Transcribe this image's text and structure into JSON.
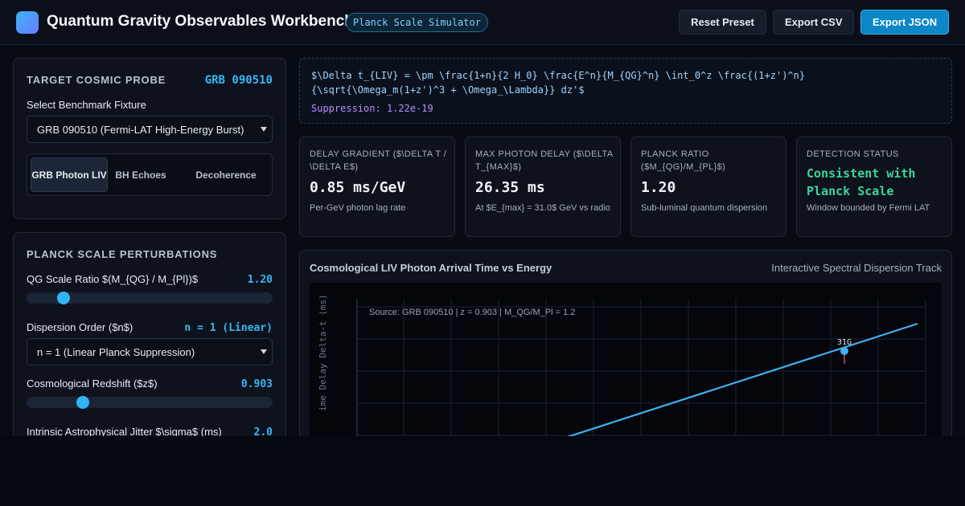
{
  "header": {
    "title": "Quantum Gravity Observables Workbench",
    "badge": "Planck Scale Simulator",
    "buttons": {
      "reset": "Reset Preset",
      "export_csv": "Export CSV",
      "export_json": "Export JSON"
    }
  },
  "probe_panel": {
    "title": "TARGET COSMIC PROBE",
    "probe_id": "GRB 090510",
    "fixture_label": "Select Benchmark Fixture",
    "fixture_value": "GRB 090510 (Fermi-LAT High-Energy Burst)",
    "tabs": [
      {
        "label": "GRB Photon LIV",
        "active": true
      },
      {
        "label": "BH Echoes",
        "active": false
      },
      {
        "label": "Decoherence",
        "active": false
      }
    ]
  },
  "perturbations": {
    "title": "PLANCK SCALE PERTURBATIONS",
    "qg_ratio": {
      "label": "QG Scale Ratio $(M_{QG} / M_{Pl})$",
      "value": "1.20",
      "fraction": 0.15
    },
    "dispersion": {
      "label": "Dispersion Order ($n$)",
      "value": "n = 1 (Linear)",
      "select_value": "n = 1 (Linear Planck Suppression)"
    },
    "redshift": {
      "label": "Cosmological Redshift ($z$)",
      "value": "0.903",
      "fraction": 0.23
    },
    "jitter": {
      "label": "Intrinsic Astrophysical Jitter $\\sigma$ (ms)",
      "value": "2.0"
    }
  },
  "formula": {
    "text": "$\\Delta t_{LIV} = \\pm \\frac{1+n}{2 H_0} \\frac{E^n}{M_{QG}^n} \\int_0^z \\frac{(1+z')^n}{\\sqrt{\\Omega_m(1+z')^3 + \\Omega_\\Lambda}} dz'$",
    "suppression_label": "Suppression:",
    "suppression_value": "1.22e-19"
  },
  "metrics": [
    {
      "label": "DELAY GRADIENT ($\\DELTA T / \\DELTA E$)",
      "value": "0.85 ms/GeV",
      "sub": "Per-GeV photon lag rate"
    },
    {
      "label": "MAX PHOTON DELAY ($\\DELTA T_{MAX}$)",
      "value": "26.35 ms",
      "sub": "At $E_{max} = 31.0$ GeV vs radio"
    },
    {
      "label": "PLANCK RATIO ($M_{QG}/M_{PL}$)",
      "value": "1.20",
      "sub": "Sub-luminal quantum dispersion"
    },
    {
      "label": "DETECTION STATUS",
      "value": "Consistent with Planck Scale",
      "sub": "Window bounded by Fermi LAT"
    }
  ],
  "chart": {
    "title": "Cosmological LIV Photon Arrival Time vs Energy",
    "subtitle": "Interactive Spectral Dispersion Track",
    "source": "Source: GRB 090510 | z = 0.903 | M_QG/M_Pl = 1.2",
    "y_label": "ime Delay Delta-t (ms)",
    "point_label": "31G",
    "line_color": "#3fb1f0"
  },
  "chart_data": {
    "type": "line",
    "title": "Cosmological LIV Photon Arrival Time vs Energy",
    "xlabel": "",
    "ylabel": "ime Delay Delta-t (ms)",
    "series": [
      {
        "x": [
          0,
          31.0
        ],
        "y": [
          0,
          26.35
        ]
      }
    ],
    "highlight_point": {
      "x": 31.0,
      "y": 26.35,
      "label": "31G"
    },
    "grid": true
  }
}
